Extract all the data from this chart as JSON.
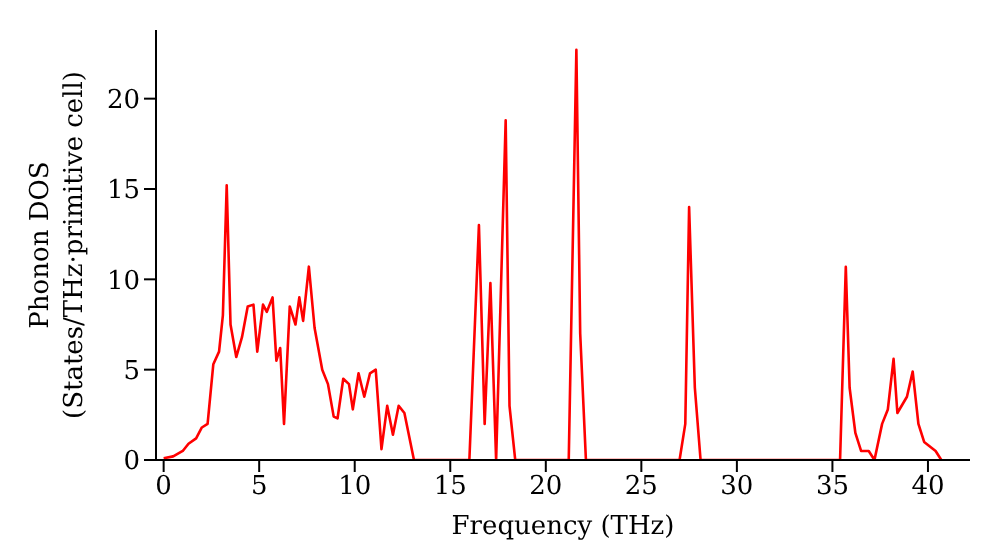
{
  "chart_data": {
    "type": "line",
    "xlabel": "Frequency (THz)",
    "ylabel": "Phonon DOS\n(States/THz·primitive cell)",
    "xlim": [
      -0.4,
      42.2
    ],
    "ylim": [
      0,
      23.8
    ],
    "xticks": [
      0,
      5,
      10,
      15,
      20,
      25,
      30,
      35,
      40
    ],
    "yticks": [
      0,
      5,
      10,
      15,
      20
    ],
    "grid": false,
    "legend": false,
    "marker": "none",
    "line_style": "solid",
    "series": [
      {
        "color": "#ff0000",
        "x": [
          0,
          0.5,
          1,
          1.3,
          1.7,
          2,
          2.3,
          2.6,
          2.9,
          3.1,
          3.3,
          3.5,
          3.8,
          4.1,
          4.4,
          4.7,
          4.9,
          5.2,
          5.4,
          5.7,
          5.9,
          6.1,
          6.3,
          6.6,
          6.9,
          7.1,
          7.3,
          7.6,
          7.9,
          8.3,
          8.6,
          8.9,
          9.1,
          9.4,
          9.7,
          9.9,
          10.2,
          10.5,
          10.8,
          11.1,
          11.4,
          11.7,
          12,
          12.3,
          12.6,
          13.1,
          16,
          16.5,
          16.8,
          17.1,
          17.4,
          17.9,
          18.1,
          18.4,
          21.2,
          21.6,
          21.8,
          22.1,
          27,
          27.3,
          27.5,
          27.8,
          28.1,
          35.4,
          35.7,
          35.9,
          36.2,
          36.5,
          36.9,
          37.2,
          37.6,
          37.9,
          38.2,
          38.4,
          38.9,
          39.2,
          39.5,
          39.8,
          40.4,
          40.7
        ],
        "values": [
          0.1,
          0.2,
          0.5,
          0.9,
          1.2,
          1.8,
          2,
          5.3,
          6,
          8,
          15.2,
          7.5,
          5.7,
          6.8,
          8.5,
          8.6,
          6,
          8.6,
          8.2,
          9,
          5.5,
          6.2,
          2,
          8.5,
          7.5,
          9,
          7.7,
          10.7,
          7.3,
          5,
          4.2,
          2.4,
          2.3,
          4.5,
          4.2,
          2.8,
          4.8,
          3.5,
          4.8,
          5,
          0.6,
          3,
          1.4,
          3,
          2.6,
          0,
          0,
          13,
          2,
          9.8,
          0,
          18.8,
          3,
          0,
          0,
          22.7,
          7,
          0,
          0,
          2,
          14,
          4,
          0,
          0,
          10.7,
          4,
          1.5,
          0.5,
          0.5,
          0,
          2,
          2.8,
          5.6,
          2.6,
          3.5,
          4.9,
          2,
          1,
          0.5,
          0
        ]
      }
    ]
  }
}
